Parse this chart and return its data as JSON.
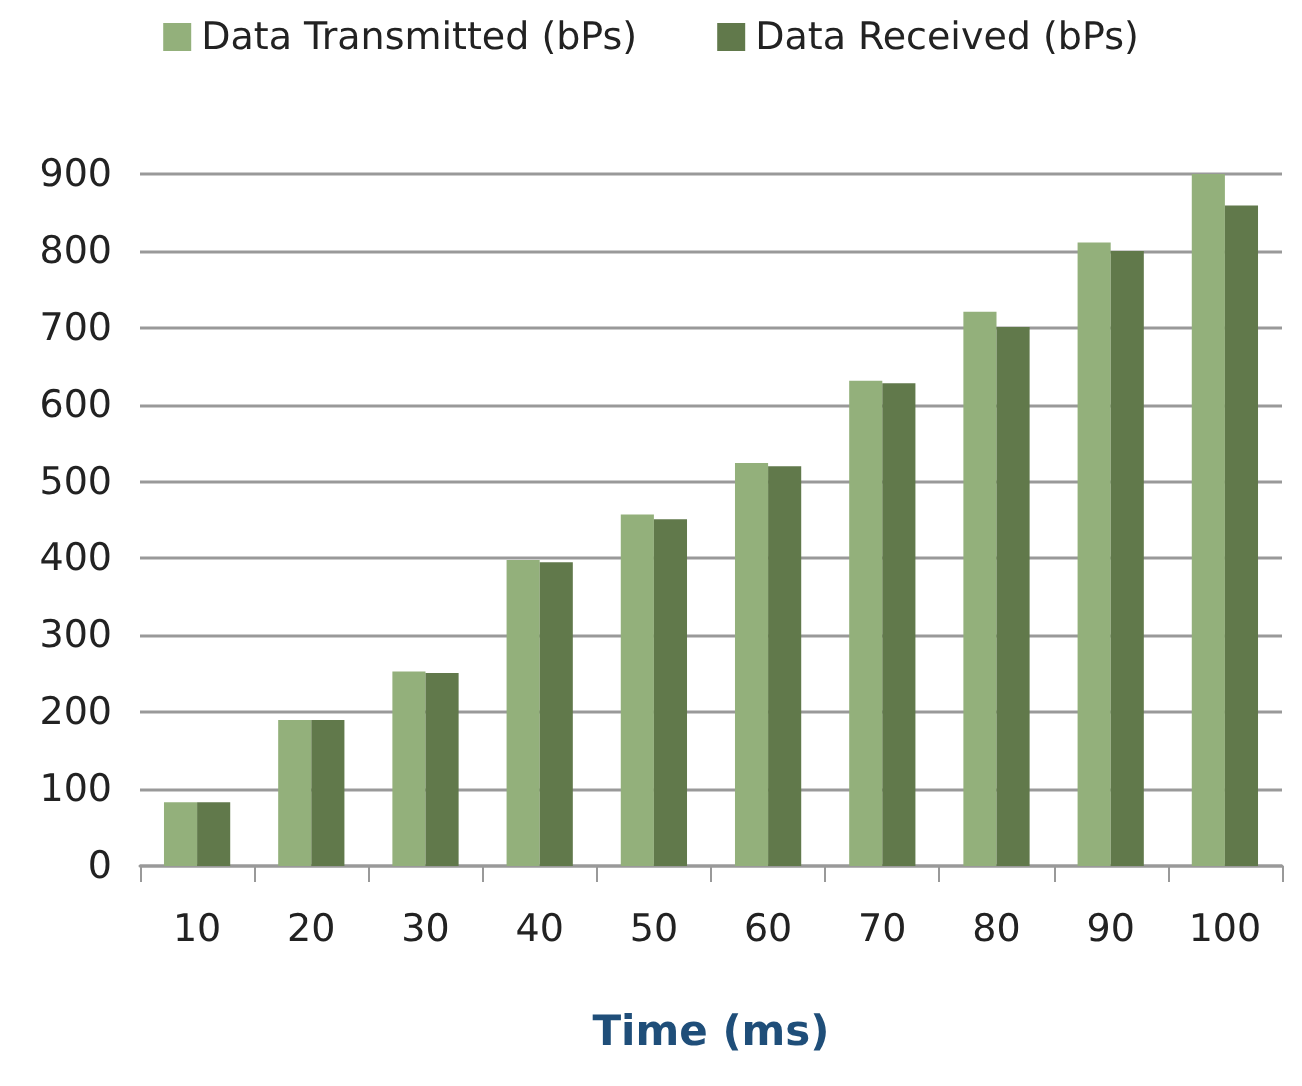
{
  "chart_data": {
    "type": "bar",
    "xlabel": "Time (ms)",
    "categories": [
      "10",
      "20",
      "30",
      "40",
      "50",
      "60",
      "70",
      "80",
      "90",
      "100"
    ],
    "series": [
      {
        "name": "Data Transmitted (bPs)",
        "color": "#93b07b",
        "values": [
          83,
          190,
          253,
          398,
          457,
          524,
          631,
          721,
          811,
          900
        ]
      },
      {
        "name": "Data Received (bPs)",
        "color": "#61794b",
        "values": [
          83,
          190,
          251,
          395,
          451,
          520,
          628,
          701,
          800,
          859
        ]
      }
    ],
    "ylim": [
      0,
      900
    ],
    "yticks": [
      0,
      100,
      200,
      300,
      400,
      500,
      600,
      700,
      800,
      900
    ],
    "grid": "y",
    "legend": "top"
  }
}
